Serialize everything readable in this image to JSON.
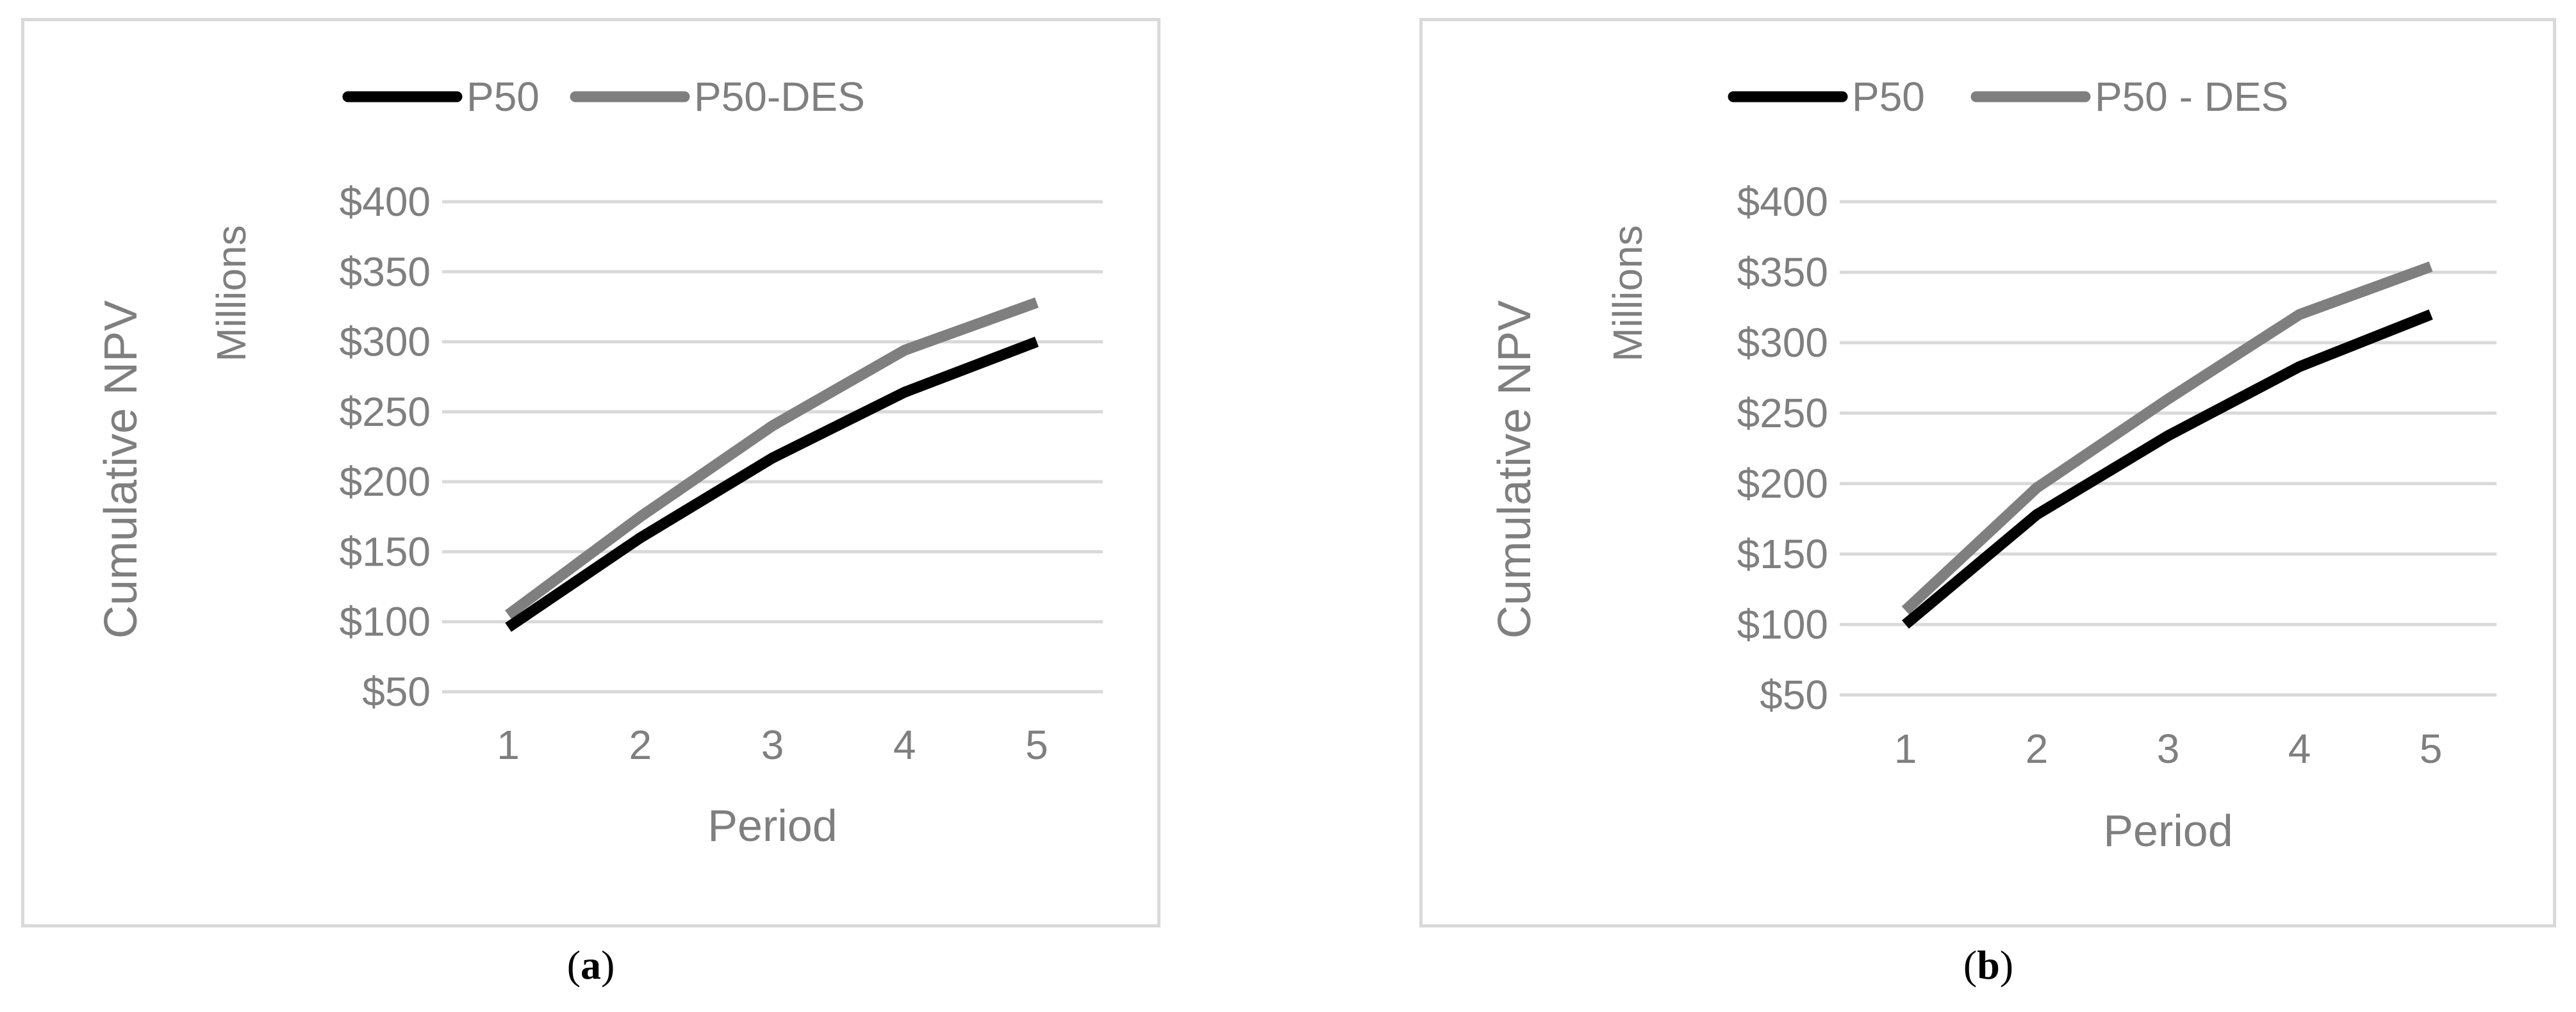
{
  "chart_data": [
    {
      "type": "line",
      "panel_label": "a",
      "title": "",
      "xlabel": "Period",
      "ylabel": "Cumulative NPV",
      "ylabel_units": "Millions",
      "x": [
        1,
        2,
        3,
        4,
        5
      ],
      "x_tick_labels": [
        "1",
        "2",
        "3",
        "4",
        "5"
      ],
      "ylim": [
        50,
        400
      ],
      "y_tick_labels": [
        "$50",
        "$100",
        "$150",
        "$200",
        "$250",
        "$300",
        "$350",
        "$400"
      ],
      "grid": "horizontal",
      "legend": "top",
      "series": [
        {
          "name": "P50",
          "values": [
            96,
            160,
            217,
            264,
            300
          ],
          "color": "#000000"
        },
        {
          "name": "P50-DES",
          "values": [
            105,
            175,
            240,
            294,
            328
          ],
          "color": "#7f7f7f"
        }
      ]
    },
    {
      "type": "line",
      "panel_label": "b",
      "title": "",
      "xlabel": "Period",
      "ylabel": "Cumulative NPV",
      "ylabel_units": "Millions",
      "x": [
        1,
        2,
        3,
        4,
        5
      ],
      "x_tick_labels": [
        "1",
        "2",
        "3",
        "4",
        "5"
      ],
      "ylim": [
        50,
        400
      ],
      "y_tick_labels": [
        "$50",
        "$100",
        "$150",
        "$200",
        "$250",
        "$300",
        "$350",
        "$400"
      ],
      "grid": "horizontal",
      "legend": "top",
      "series": [
        {
          "name": "P50",
          "values": [
            100,
            178,
            234,
            283,
            320
          ],
          "color": "#000000"
        },
        {
          "name": "P50 - DES",
          "values": [
            110,
            197,
            260,
            320,
            354
          ],
          "color": "#7f7f7f"
        }
      ]
    }
  ],
  "colors": {
    "axis_text": "#7f7f7f",
    "gridline": "#d9d9d9",
    "border": "#d9d9d9"
  }
}
